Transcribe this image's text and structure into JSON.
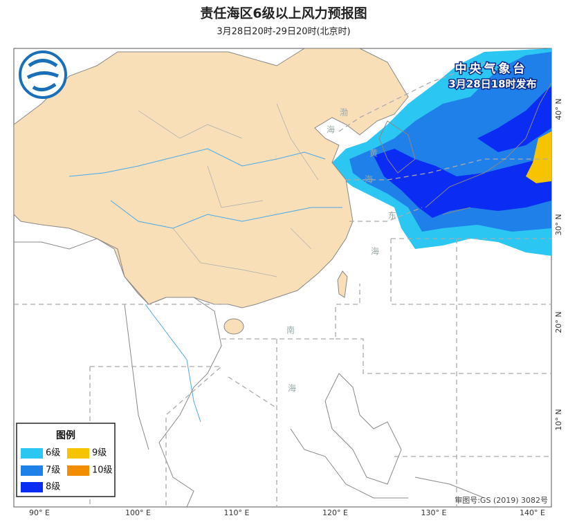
{
  "header": {
    "title": "责任海区6级以上风力预报图",
    "subtitle": "3月28日20时-29日20时(北京时)"
  },
  "issuer": {
    "name": "中央气象台",
    "time": "3月28日18时发布"
  },
  "legend": {
    "title": "图例",
    "items": [
      {
        "label": "6级",
        "color": "#2bc6f2"
      },
      {
        "label": "7级",
        "color": "#1f80ea"
      },
      {
        "label": "8级",
        "color": "#0b2cf2"
      },
      {
        "label": "9级",
        "color": "#f6c400"
      },
      {
        "label": "10级",
        "color": "#f28c00"
      }
    ]
  },
  "sea_labels": {
    "bohai": [
      "渤",
      "海"
    ],
    "yellow_sea": [
      "黄",
      "海"
    ],
    "east_sea": [
      "东",
      "海"
    ],
    "south_sea": [
      "南",
      "海"
    ]
  },
  "axis_labels": {
    "longitude": [
      "90° E",
      "100° E",
      "110° E",
      "120° E",
      "130° E",
      "140° E"
    ],
    "latitude": [
      "40° N",
      "30° N",
      "20° N",
      "10° N"
    ]
  },
  "map_approval": "审图号:GS (2019) 3082号"
}
